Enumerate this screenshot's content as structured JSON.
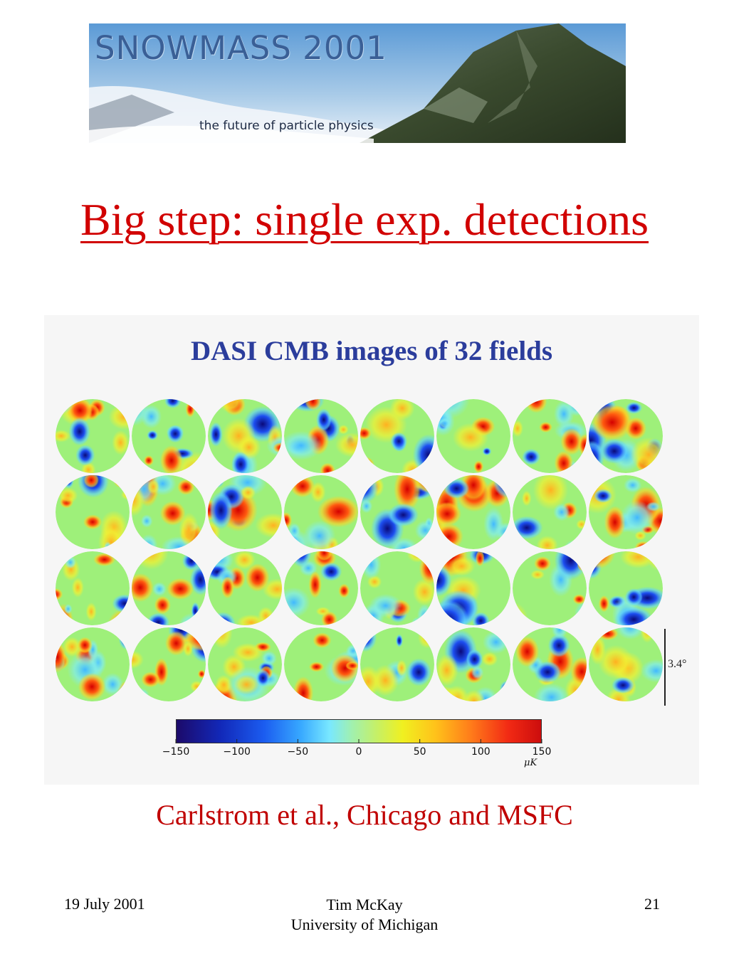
{
  "banner": {
    "title": "SNOWMASS 2001",
    "subtitle": "the future of particle physics"
  },
  "slide": {
    "title": "Big step: single exp. detections"
  },
  "figure": {
    "title": "DASI CMB images of 32 fields",
    "scale_label": "3.4°",
    "colorbar": {
      "tick_labels": [
        "−150",
        "−100",
        "−50",
        "0",
        "50",
        "100",
        "150"
      ],
      "tick_values": [
        -150,
        -100,
        -50,
        0,
        50,
        100,
        150
      ],
      "unit": "μK",
      "range": [
        -150,
        150
      ]
    },
    "grid": {
      "rows": 4,
      "columns": 8,
      "field_count": 32
    }
  },
  "caption": "Carlstrom et al., Chicago and MSFC",
  "footer": {
    "date": "19 July 2001",
    "author": "Tim McKay",
    "affiliation": "University of Michigan",
    "page_number": "21"
  },
  "colors": {
    "title": "#d10000",
    "caption": "#c00000",
    "figure_title": "#2b3d9c",
    "banner_title": "#3a5f96"
  }
}
